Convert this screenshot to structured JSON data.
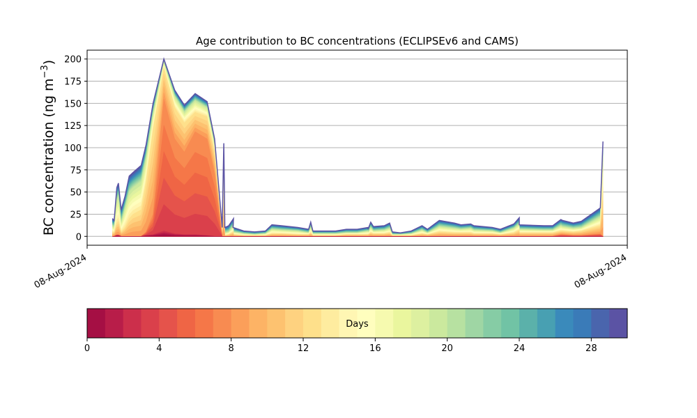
{
  "chart_data": {
    "type": "area",
    "title": "Age contribution to BC concentrations (ECLIPSEv6 and CAMS)",
    "ylabel": "BC concentration (ng m",
    "ylabel_superscript": "−3",
    "ylabel_close": ")",
    "xlabel": "",
    "ylim": [
      -10,
      210
    ],
    "yticks": [
      0,
      25,
      50,
      75,
      100,
      125,
      150,
      175,
      200
    ],
    "xtick_labels": [
      "08-Aug-2024",
      "08-Aug-2024"
    ],
    "grid": "horizontal",
    "colormap": "Spectral",
    "x": [
      0.047,
      0.05,
      0.055,
      0.058,
      0.063,
      0.07,
      0.078,
      0.085,
      0.1,
      0.109,
      0.122,
      0.142,
      0.162,
      0.18,
      0.2,
      0.222,
      0.236,
      0.25,
      0.253,
      0.255,
      0.262,
      0.271,
      0.27,
      0.29,
      0.31,
      0.33,
      0.342,
      0.36,
      0.39,
      0.41,
      0.414,
      0.418,
      0.425,
      0.46,
      0.48,
      0.5,
      0.52,
      0.52,
      0.525,
      0.53,
      0.55,
      0.56,
      0.565,
      0.58,
      0.6,
      0.62,
      0.63,
      0.652,
      0.68,
      0.692,
      0.71,
      0.716,
      0.75,
      0.765,
      0.79,
      0.8,
      0.8,
      0.846,
      0.862,
      0.877,
      0.88,
      0.9,
      0.915,
      0.95,
      0.955
    ],
    "total": [
      20,
      18,
      55,
      60,
      30,
      45,
      68,
      72,
      80,
      103,
      150,
      200,
      165,
      148,
      161,
      152,
      110,
      10,
      105,
      10,
      12,
      20,
      10,
      6,
      5,
      6,
      13,
      12,
      10,
      8,
      16,
      6,
      6,
      6,
      8,
      8,
      10,
      8,
      16,
      11,
      12,
      15,
      5,
      4,
      6,
      12,
      8,
      18,
      15,
      13,
      14,
      12,
      10,
      8,
      14,
      21,
      13,
      12,
      12,
      19,
      18,
      15,
      17,
      32,
      107
    ],
    "layers": [
      {
        "from_day": 0,
        "to_day": 3,
        "values": [
          0,
          0,
          1,
          1,
          0,
          0,
          0,
          0,
          0,
          1,
          2,
          6,
          3,
          2,
          2,
          1,
          0,
          0,
          0,
          0,
          0,
          0,
          0,
          0,
          0,
          0,
          0,
          0,
          0,
          0,
          0,
          0,
          0,
          0,
          0,
          0,
          0,
          0,
          0,
          0,
          0,
          0,
          0,
          0,
          0,
          0,
          0,
          0,
          0,
          0,
          0,
          0,
          0,
          0,
          0,
          0,
          0,
          0,
          0,
          0,
          0,
          0,
          0,
          0,
          0
        ]
      },
      {
        "from_day": 3,
        "to_day": 8,
        "values": [
          0,
          0,
          2,
          2,
          0,
          0,
          0,
          0,
          0,
          5,
          25,
          155,
          110,
          95,
          118,
          110,
          70,
          0,
          0,
          0,
          0,
          0,
          0,
          0,
          0,
          0,
          0,
          0,
          0,
          0,
          0,
          0,
          0,
          0,
          0,
          0,
          0,
          0,
          0,
          0,
          0,
          0,
          0,
          0,
          0,
          0,
          0,
          0,
          0,
          0,
          0,
          0,
          0,
          0,
          0,
          0,
          0,
          0,
          0,
          2,
          2,
          1,
          1,
          3,
          0
        ]
      },
      {
        "from_day": 8,
        "to_day": 13,
        "values": [
          5,
          4,
          15,
          17,
          5,
          10,
          20,
          25,
          30,
          60,
          120,
          190,
          145,
          128,
          140,
          135,
          95,
          1,
          40,
          1,
          2,
          5,
          2,
          1,
          1,
          1,
          3,
          3,
          2,
          2,
          4,
          1,
          1,
          1,
          2,
          2,
          2,
          2,
          4,
          3,
          3,
          4,
          1,
          1,
          1,
          3,
          2,
          5,
          4,
          4,
          4,
          3,
          3,
          2,
          4,
          7,
          4,
          4,
          4,
          6,
          6,
          5,
          6,
          12,
          50
        ]
      },
      {
        "from_day": 13,
        "to_day": 20,
        "values": [
          12,
          10,
          40,
          45,
          15,
          32,
          50,
          55,
          62,
          88,
          138,
          196,
          158,
          140,
          153,
          145,
          103,
          4,
          80,
          4,
          5,
          12,
          5,
          3,
          2,
          3,
          8,
          7,
          6,
          4,
          10,
          3,
          3,
          3,
          4,
          4,
          6,
          4,
          10,
          6,
          7,
          9,
          2,
          2,
          3,
          7,
          4,
          11,
          9,
          8,
          9,
          7,
          6,
          4,
          9,
          14,
          8,
          7,
          7,
          12,
          11,
          9,
          10,
          22,
          90
        ]
      },
      {
        "from_day": 20,
        "to_day": 30,
        "values": [
          20,
          18,
          55,
          60,
          30,
          45,
          68,
          72,
          80,
          103,
          150,
          200,
          165,
          148,
          161,
          152,
          110,
          10,
          105,
          10,
          12,
          20,
          10,
          6,
          5,
          6,
          13,
          12,
          10,
          8,
          16,
          6,
          6,
          6,
          8,
          8,
          10,
          8,
          16,
          11,
          12,
          15,
          5,
          4,
          6,
          12,
          8,
          18,
          15,
          13,
          14,
          12,
          10,
          8,
          14,
          21,
          13,
          12,
          12,
          19,
          18,
          15,
          17,
          32,
          107
        ]
      }
    ],
    "colorbar": {
      "label": "Days",
      "range": [
        0,
        30
      ],
      "ticks": [
        0,
        4,
        8,
        12,
        16,
        20,
        24,
        28
      ],
      "colors": [
        "#a50f44",
        "#b81d49",
        "#cc2f4b",
        "#da404b",
        "#e5534b",
        "#ef6545",
        "#f57748",
        "#f88b51",
        "#fb9f5a",
        "#fdb365",
        "#fdc270",
        "#fed280",
        "#fee08b",
        "#feec9f",
        "#fff6b3",
        "#fffebe",
        "#f6faaf",
        "#eaf69e",
        "#ddf0a0",
        "#cbe99e",
        "#b7e1a1",
        "#9fd6a4",
        "#86cca5",
        "#71c3a5",
        "#5bb1aa",
        "#48a0b2",
        "#3a8abb",
        "#3a7bb8",
        "#4a65ad",
        "#5b53a4"
      ]
    }
  }
}
